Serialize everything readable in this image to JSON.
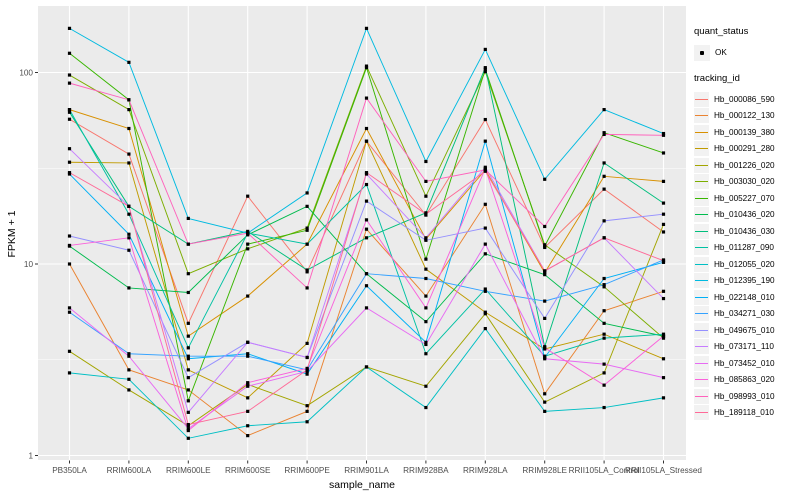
{
  "figure": {
    "background": "#FFFFFF",
    "panel_background": "#EBEBEB",
    "grid_color": "#FFFFFF",
    "tick_color": "#333333",
    "tick_label_color": "#4D4D4D"
  },
  "legend": {
    "quant_status_title": "quant_status",
    "quant_status_items": [
      {
        "label": "OK",
        "symbol": "black-point"
      }
    ],
    "tracking_title": "tracking_id"
  },
  "chart_data": {
    "type": "line",
    "title": "",
    "xlabel": "sample_name",
    "ylabel": "FPKM + 1",
    "y_scale": "log10",
    "ylim": [
      0.93,
      224
    ],
    "y_ticks": [
      1,
      10,
      100
    ],
    "y_tick_labels": [
      "1",
      "10",
      "100"
    ],
    "y_minor_ticks": [
      3.1623,
      31.6228
    ],
    "grid": "on",
    "legend_position": "right",
    "point_color": "#000000",
    "categories": [
      "PB350LA",
      "RRIM600LA",
      "RRIM600LE",
      "RRIM600SE",
      "RRIM600PE",
      "RRIM901LA",
      "RRIM928BA",
      "RRIM928LA",
      "RRIM928LE",
      "RRII105LA_Control",
      "RRII105LA_Stressed"
    ],
    "series": [
      {
        "name": "Hb_000086_590",
        "color": "#F8766D",
        "values": [
          57,
          37.5,
          4.9,
          22.6,
          9.1,
          43.8,
          18.0,
          56.8,
          12.2,
          24.6,
          14.7
        ]
      },
      {
        "name": "Hb_000122_130",
        "color": "#EA8331",
        "values": [
          10,
          2.8,
          2.2,
          1.27,
          1.7,
          15.2,
          6.8,
          20.5,
          2.1,
          5.7,
          7.2
        ]
      },
      {
        "name": "Hb_000139_380",
        "color": "#D89000",
        "values": [
          64,
          51,
          4.2,
          6.8,
          12.7,
          51,
          13.5,
          31,
          9.0,
          28.7,
          27
        ]
      },
      {
        "name": "Hb_000291_280",
        "color": "#C09B00",
        "values": [
          34,
          33.7,
          2.8,
          2.0,
          3.85,
          43.8,
          9.4,
          5.6,
          3.6,
          4.3,
          3.2
        ]
      },
      {
        "name": "Hb_001226_020",
        "color": "#A3A500",
        "values": [
          3.5,
          2.2,
          1.43,
          2.35,
          1.82,
          2.9,
          2.3,
          5.5,
          1.9,
          2.7,
          16.1
        ]
      },
      {
        "name": "Hb_003030_020",
        "color": "#7CAE00",
        "values": [
          97,
          64,
          8.9,
          12.0,
          15.4,
          108,
          22.6,
          101,
          12.6,
          7.6,
          4.1
        ]
      },
      {
        "name": "Hb_005227_070",
        "color": "#39B600",
        "values": [
          126,
          72,
          1.93,
          12.7,
          15.0,
          106,
          10.6,
          104,
          12.4,
          48.5,
          38
        ]
      },
      {
        "name": "Hb_010436_020",
        "color": "#00BB4E",
        "values": [
          12.4,
          7.5,
          7.1,
          14.2,
          20.0,
          8.9,
          5.0,
          11.3,
          8.8,
          4.9,
          4.2
        ]
      },
      {
        "name": "Hb_010436_030",
        "color": "#00BF7D",
        "values": [
          62,
          20,
          12.7,
          14.8,
          9.3,
          13.7,
          18.5,
          106,
          3.7,
          33.7,
          20.8
        ]
      },
      {
        "name": "Hb_011287_090",
        "color": "#00C1A3",
        "values": [
          64,
          18.2,
          3.65,
          14.5,
          12.7,
          26,
          3.4,
          7.4,
          3.3,
          4.1,
          4.3
        ]
      },
      {
        "name": "Hb_012055_020",
        "color": "#00BFC4",
        "values": [
          2.7,
          2.5,
          1.23,
          1.43,
          1.5,
          2.9,
          1.78,
          4.6,
          1.7,
          1.78,
          2.0
        ]
      },
      {
        "name": "Hb_012395_190",
        "color": "#00BAE0",
        "values": [
          170,
          113,
          17.3,
          14.5,
          23.5,
          170,
          34.3,
          132,
          27.7,
          64,
          48
        ]
      },
      {
        "name": "Hb_022148_010",
        "color": "#00B0F6",
        "values": [
          29.5,
          14.3,
          3.2,
          3.4,
          2.66,
          7.7,
          3.9,
          43.8,
          3.25,
          8.4,
          10.2
        ]
      },
      {
        "name": "Hb_034271_030",
        "color": "#35A2FF",
        "values": [
          5.6,
          3.4,
          3.3,
          3.3,
          2.8,
          8.9,
          8.4,
          7.2,
          6.4,
          7.8,
          10.5
        ]
      },
      {
        "name": "Hb_049675_010",
        "color": "#9590FF",
        "values": [
          14,
          11.8,
          2.55,
          3.9,
          3.25,
          21.3,
          13.3,
          15.4,
          5.2,
          16.8,
          18.2
        ]
      },
      {
        "name": "Hb_073171_110",
        "color": "#C77CFF",
        "values": [
          40,
          20,
          1.68,
          3.9,
          3.25,
          29.5,
          13.7,
          32,
          9.2,
          13.7,
          6.6
        ]
      },
      {
        "name": "Hb_073452_010",
        "color": "#E76BF3",
        "values": [
          5.9,
          3.3,
          1.38,
          2.3,
          2.75,
          5.9,
          3.8,
          12.7,
          3.2,
          3.0,
          2.55
        ]
      },
      {
        "name": "Hb_085863_020",
        "color": "#FA62DB",
        "values": [
          12.5,
          13.7,
          1.35,
          2.4,
          2.85,
          17.0,
          5.9,
          31.5,
          3.65,
          2.33,
          4.2
        ]
      },
      {
        "name": "Hb_098993_010",
        "color": "#FF62BC",
        "values": [
          88,
          72,
          12.7,
          14.5,
          7.5,
          73.5,
          27,
          31,
          15.7,
          47.5,
          47
        ]
      },
      {
        "name": "Hb_189118_010",
        "color": "#FF6A98",
        "values": [
          30,
          20,
          1.45,
          1.7,
          2.8,
          30,
          18.2,
          30.5,
          9.2,
          13.7,
          10.4
        ]
      }
    ]
  }
}
